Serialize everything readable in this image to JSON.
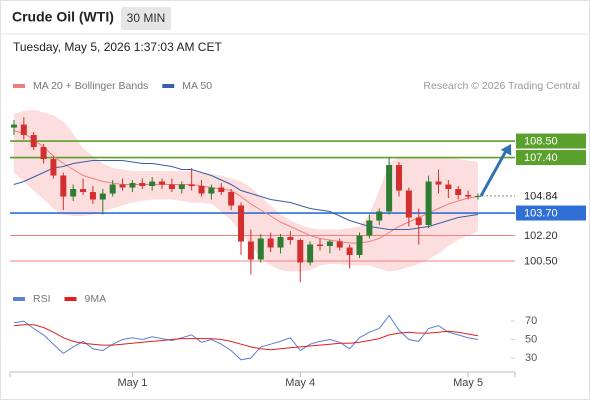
{
  "header": {
    "title": "Crude Oil (WTI)",
    "timeframe": "30 MIN",
    "timestamp": "Tuesday, May 5, 2026 1:37:03 AM CET",
    "credit": "Research © 2026 Trading Central"
  },
  "chart_data": [
    {
      "type": "candlestick",
      "up_color": "#2e7d32",
      "down_color": "#d32f2f",
      "xlim": [
        -0.4,
        50.75
      ],
      "ylim": [
        98.9,
        110.57
      ],
      "xticks": [
        {
          "value": 12,
          "label": "May 1"
        },
        {
          "value": 29,
          "label": "May 4"
        },
        {
          "value": 46,
          "label": "May 5"
        }
      ],
      "open": [
        109.4,
        109.6,
        108.9,
        108.1,
        107.3,
        106.2,
        104.8,
        105.3,
        105.1,
        104.6,
        105.0,
        105.6,
        105.4,
        105.7,
        105.5,
        105.8,
        105.6,
        105.3,
        105.6,
        105.5,
        105.0,
        105.4,
        105.1,
        104.2,
        101.8,
        100.6,
        102.0,
        101.4,
        102.1,
        101.9,
        100.4,
        101.6,
        101.5,
        101.8,
        101.4,
        100.9,
        102.2,
        103.2,
        103.8,
        106.9,
        105.2,
        103.4,
        102.9,
        105.8,
        105.6,
        105.3,
        104.9,
        104.8
      ],
      "high": [
        109.9,
        110.1,
        109.1,
        108.3,
        107.5,
        106.4,
        105.6,
        106.0,
        105.5,
        105.3,
        105.9,
        106.0,
        105.9,
        106.0,
        106.1,
        106.0,
        106.0,
        105.8,
        106.7,
        105.9,
        105.6,
        105.7,
        105.3,
        104.4,
        102.6,
        102.3,
        102.4,
        102.3,
        102.5,
        102.0,
        101.8,
        102.0,
        101.9,
        102.0,
        101.6,
        102.4,
        103.6,
        104.0,
        107.4,
        107.1,
        105.4,
        104.0,
        106.2,
        106.6,
        105.9,
        105.5,
        105.2,
        105.0
      ],
      "low": [
        108.9,
        108.6,
        107.9,
        107.0,
        106.0,
        103.9,
        104.5,
        104.9,
        104.3,
        103.6,
        104.8,
        105.2,
        105.1,
        105.3,
        105.2,
        105.3,
        105.1,
        105.0,
        105.2,
        104.8,
        104.6,
        104.9,
        103.9,
        100.9,
        99.6,
        100.4,
        101.1,
        101.0,
        101.6,
        99.1,
        100.2,
        101.2,
        101.0,
        101.2,
        100.0,
        100.7,
        102.0,
        102.9,
        103.6,
        104.8,
        102.8,
        101.6,
        102.7,
        105.0,
        104.7,
        104.6,
        104.6,
        104.6
      ],
      "close": [
        109.6,
        108.9,
        108.1,
        107.3,
        106.2,
        104.8,
        105.3,
        105.1,
        104.6,
        105.0,
        105.6,
        105.4,
        105.7,
        105.5,
        105.8,
        105.6,
        105.3,
        105.6,
        105.5,
        105.0,
        105.4,
        105.1,
        104.2,
        101.8,
        100.6,
        102.0,
        101.4,
        102.1,
        101.9,
        100.4,
        101.6,
        101.5,
        101.8,
        101.4,
        100.9,
        102.2,
        103.2,
        103.8,
        106.9,
        105.2,
        103.4,
        102.9,
        105.8,
        105.6,
        105.3,
        104.9,
        104.8,
        104.84
      ],
      "series": [
        {
          "name": "MA 20 + Bollinger Bands",
          "color": "#f08080",
          "band_color": "#fbd3d3",
          "values": [
            109.2,
            109.0,
            108.6,
            108.1,
            107.5,
            107.0,
            106.6,
            106.2,
            106.0,
            105.8,
            105.7,
            105.6,
            105.6,
            105.6,
            105.6,
            105.6,
            105.6,
            105.6,
            105.6,
            105.5,
            105.4,
            105.3,
            105.2,
            104.8,
            104.3,
            103.9,
            103.5,
            103.1,
            102.8,
            102.5,
            102.2,
            102.0,
            101.9,
            101.8,
            101.7,
            101.7,
            101.8,
            102.0,
            102.4,
            102.8,
            103.1,
            103.4,
            103.7,
            104.0,
            104.3,
            104.5,
            104.7,
            104.8
          ],
          "band_upper": [
            110.3,
            110.5,
            110.6,
            110.4,
            110.2,
            109.8,
            109.0,
            108.0,
            107.5,
            107.0,
            106.7,
            106.6,
            106.5,
            106.5,
            106.5,
            106.5,
            106.5,
            106.5,
            106.5,
            106.4,
            106.3,
            106.2,
            106.0,
            105.8,
            105.4,
            104.8,
            104.2,
            103.6,
            103.2,
            102.9,
            102.7,
            102.6,
            102.6,
            102.6,
            102.7,
            102.8,
            103.6,
            105.2,
            107.0,
            107.4,
            107.4,
            107.4,
            107.4,
            107.4,
            107.4,
            107.3,
            107.2,
            107.1
          ],
          "band_lower": [
            106.4,
            105.8,
            105.2,
            104.6,
            104.0,
            103.6,
            103.5,
            103.5,
            103.6,
            103.8,
            104.0,
            104.2,
            104.4,
            104.5,
            104.6,
            104.6,
            104.6,
            104.5,
            104.4,
            104.4,
            104.3,
            103.8,
            103.2,
            102.4,
            101.5,
            100.7,
            100.2,
            99.9,
            99.8,
            99.8,
            99.9,
            100.2,
            100.3,
            100.3,
            100.2,
            100.2,
            100.2,
            100.0,
            99.8,
            99.9,
            100.1,
            100.3,
            100.6,
            101.0,
            101.5,
            101.9,
            102.2,
            102.5
          ]
        },
        {
          "name": "MA 50",
          "color": "#3a5ea8",
          "values": [
            105.6,
            105.8,
            106.1,
            106.4,
            106.7,
            106.8,
            107.0,
            107.1,
            107.2,
            107.2,
            107.2,
            107.2,
            107.1,
            107.0,
            107.0,
            106.9,
            106.8,
            106.6,
            106.6,
            106.4,
            106.2,
            105.9,
            105.6,
            105.2,
            105.0,
            104.8,
            104.6,
            104.5,
            104.4,
            104.2,
            104.0,
            103.9,
            103.8,
            103.5,
            103.2,
            103.0,
            102.8,
            102.7,
            102.6,
            102.6,
            102.6,
            102.7,
            102.8,
            103.0,
            103.2,
            103.4,
            103.5,
            103.6
          ]
        }
      ],
      "levels": [
        {
          "value": 108.5,
          "label": "108.50",
          "color": "#5aa02c",
          "label_fill": "#5aa02c",
          "label_color": "#ffffff",
          "line_style": "solid"
        },
        {
          "value": 107.4,
          "label": "107.40",
          "color": "#5aa02c",
          "label_fill": "#5aa02c",
          "label_color": "#ffffff",
          "line_style": "solid"
        },
        {
          "value": 104.84,
          "label": "104.84",
          "color": "#888888",
          "label_fill": "#ffffff",
          "label_color": "#222222",
          "line_style": "dashed"
        },
        {
          "value": 103.7,
          "label": "103.70",
          "color": "#2f6fd6",
          "label_fill": "#2f6fd6",
          "label_color": "#ffffff",
          "line_style": "solid"
        },
        {
          "value": 102.2,
          "label": "102.20",
          "color": "#f08080",
          "label_fill": "#ffffff",
          "label_color": "#333333",
          "line_style": "solid"
        },
        {
          "value": 100.5,
          "label": "100.50",
          "color": "#f08080",
          "label_fill": "#ffffff",
          "label_color": "#333333",
          "line_style": "solid"
        }
      ],
      "arrow_color": "#2f6fb5"
    },
    {
      "type": "line",
      "xlim": [
        -0.4,
        50.75
      ],
      "ylim": [
        17,
        82
      ],
      "yticks": [
        30,
        50,
        70
      ],
      "series": [
        {
          "name": "RSI",
          "color": "#5b7fd6",
          "values": [
            68,
            70,
            62,
            55,
            45,
            35,
            42,
            48,
            40,
            38,
            45,
            50,
            52,
            50,
            53,
            51,
            49,
            52,
            55,
            47,
            50,
            45,
            38,
            28,
            30,
            42,
            45,
            48,
            52,
            38,
            45,
            48,
            50,
            47,
            40,
            52,
            58,
            62,
            76,
            60,
            50,
            48,
            62,
            65,
            58,
            55,
            52,
            50
          ]
        },
        {
          "name": "9MA",
          "color": "#e02020",
          "values": [
            65,
            66,
            66,
            63,
            58,
            52,
            48,
            46,
            45,
            44,
            44,
            45,
            46,
            47,
            48,
            49,
            50,
            51,
            51,
            51,
            51,
            50,
            48,
            45,
            42,
            40,
            39,
            40,
            41,
            42,
            43,
            44,
            45,
            46,
            46,
            47,
            49,
            51,
            55,
            57,
            58,
            57,
            57,
            58,
            59,
            58,
            56,
            54
          ]
        }
      ]
    }
  ]
}
